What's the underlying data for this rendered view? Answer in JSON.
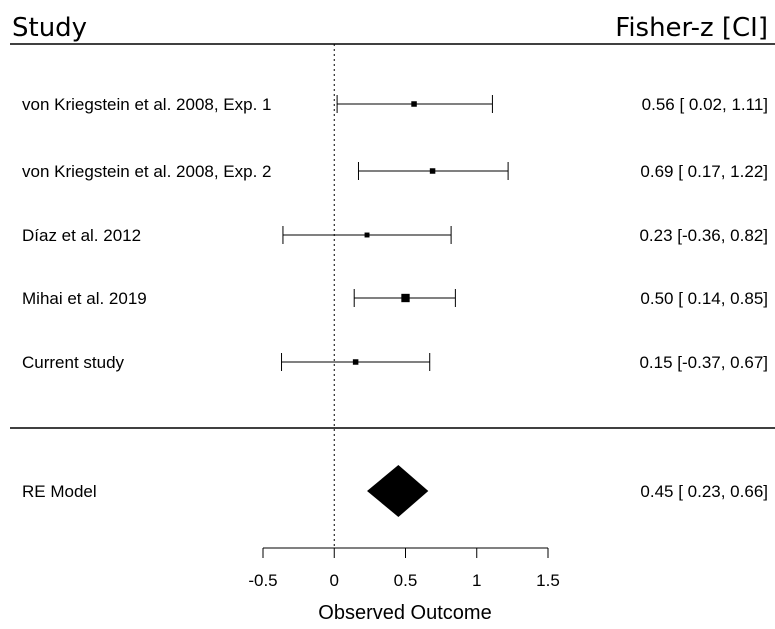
{
  "chart_data": {
    "type": "forest",
    "header_left": "Study",
    "header_right": "Fisher-z [CI]",
    "xlabel": "Observed Outcome",
    "xlim": [
      -0.5,
      1.5
    ],
    "xticks": [
      "-0.5",
      "0",
      "0.5",
      "1",
      "1.5"
    ],
    "reference_line": 0,
    "studies": [
      {
        "label": "von Kriegstein et al. 2008, Exp. 1",
        "estimate": 0.56,
        "lower": 0.02,
        "upper": 1.11,
        "ci_text": "0.56 [ 0.02, 1.11]",
        "weight": 1.0
      },
      {
        "label": "von Kriegstein et al. 2008, Exp. 2",
        "estimate": 0.69,
        "lower": 0.17,
        "upper": 1.22,
        "ci_text": "0.69 [ 0.17, 1.22]",
        "weight": 1.0
      },
      {
        "label": "Díaz et al. 2012",
        "estimate": 0.23,
        "lower": -0.36,
        "upper": 0.82,
        "ci_text": "0.23 [-0.36, 0.82]",
        "weight": 0.8
      },
      {
        "label": "Mihai et al. 2019",
        "estimate": 0.5,
        "lower": 0.14,
        "upper": 0.85,
        "ci_text": "0.50 [ 0.14, 0.85]",
        "weight": 2.3
      },
      {
        "label": "Current study",
        "estimate": 0.15,
        "lower": -0.37,
        "upper": 0.67,
        "ci_text": "0.15 [-0.37, 0.67]",
        "weight": 1.0
      }
    ],
    "summary": {
      "label": "RE Model",
      "estimate": 0.45,
      "lower": 0.23,
      "upper": 0.66,
      "ci_text": "0.45 [ 0.23, 0.66]"
    }
  }
}
